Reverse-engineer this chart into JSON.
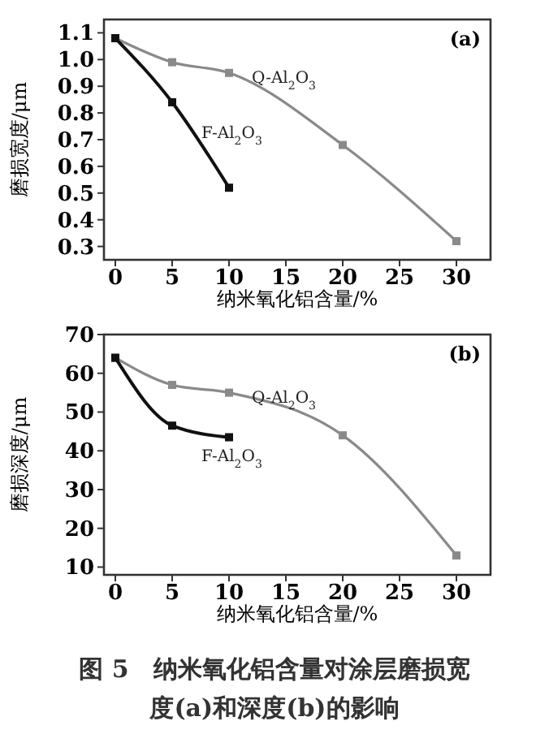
{
  "chart_data": [
    {
      "type": "line",
      "xlabel": "纳米氧化铝含量/%",
      "ylabel": "磨损宽度/μm",
      "xlim": [
        -1,
        33
      ],
      "xticks": [
        0,
        5,
        10,
        15,
        20,
        25,
        30
      ],
      "ylim": [
        0.25,
        1.15
      ],
      "yticks": [
        0.3,
        0.4,
        0.5,
        0.6,
        0.7,
        0.8,
        0.9,
        {
          "value": 1.0,
          "label": "1.0"
        },
        1.1
      ],
      "marker": "square",
      "grid": false,
      "annotations": [
        "(a)"
      ],
      "series": [
        {
          "name": "Q-Al$_{2}$O$_{3}$",
          "color": "#8a8a8a",
          "x": [
            0,
            5,
            10,
            20,
            30
          ],
          "values": [
            1.08,
            0.99,
            0.95,
            0.68,
            0.32
          ]
        },
        {
          "name": "F-Al$_{2}$O$_{3}$",
          "color": "#111111",
          "x": [
            0,
            5,
            10
          ],
          "values": [
            1.08,
            0.84,
            0.52
          ]
        }
      ]
    },
    {
      "type": "line",
      "xlabel": "纳米氧化铝含量/%",
      "ylabel": "磨损深度/μm",
      "xlim": [
        -1,
        33
      ],
      "xticks": [
        0,
        5,
        10,
        15,
        20,
        25,
        30
      ],
      "ylim": [
        8,
        70
      ],
      "yticks": [
        10,
        20,
        30,
        40,
        50,
        60,
        70
      ],
      "marker": "square",
      "grid": false,
      "annotations": [
        "(b)",
        "图 5　纳米氧化铝含量对涂层磨损宽度(a)和深度(b)的影响"
      ],
      "series": [
        {
          "name": "Q-Al$_{2}$O$_{3}$",
          "color": "#8a8a8a",
          "x": [
            0,
            5,
            10,
            20,
            30
          ],
          "values": [
            64,
            57,
            55,
            44,
            13
          ]
        },
        {
          "name": "F-Al$_{2}$O$_{3}$",
          "color": "#111111",
          "x": [
            0,
            5,
            10
          ],
          "values": [
            64,
            46.5,
            43.5
          ]
        }
      ]
    }
  ]
}
